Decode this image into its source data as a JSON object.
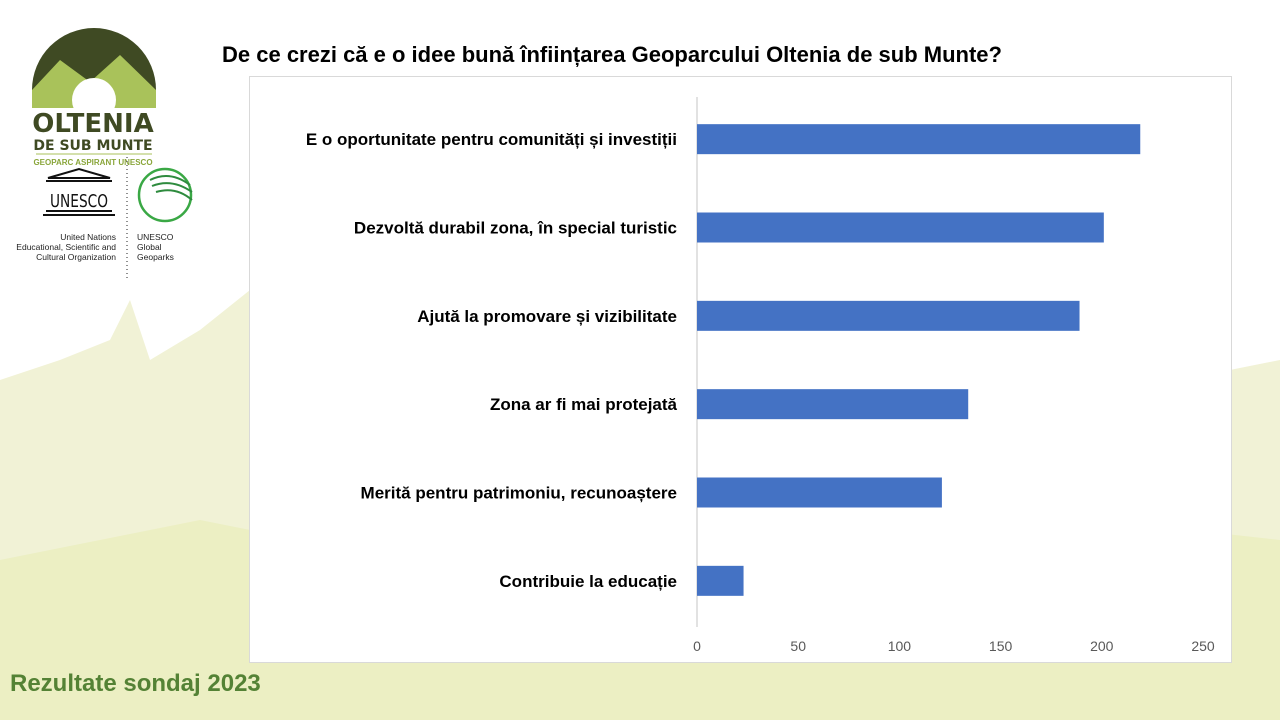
{
  "slide": {
    "title": "De ce crezi că e o idee bună înființarea Geoparcului Oltenia de sub Munte?",
    "footer": "Rezultate sondaj 2023"
  },
  "logo": {
    "name_line1": "OLTENIA",
    "name_line2": "DE SUB MUNTE",
    "subtitle": "GEOPARC ASPIRANT UNESCO",
    "unesco_word": "UNESCO",
    "unesco_caption": [
      "United Nations",
      "Educational, Scientific and",
      "Cultural Organization"
    ],
    "geoparks_caption": [
      "UNESCO",
      "Global",
      "Geoparks"
    ]
  },
  "colors": {
    "bar": "#4472c4",
    "footer": "#548235",
    "logo_dark": "#3f4a23",
    "logo_light": "#a9c25a"
  },
  "chart_data": {
    "type": "bar",
    "orientation": "horizontal",
    "title": "De ce crezi că e o idee bună înființarea Geoparcului Oltenia de sub Munte?",
    "categories": [
      "E o oportunitate pentru comunități și investiții",
      "Dezvoltă durabil zona, în special turistic",
      "Ajută la promovare și vizibilitate",
      "Zona ar fi mai protejată",
      "Merită pentru patrimoniu, recunoaștere",
      "Contribuie la educație"
    ],
    "values": [
      219,
      201,
      189,
      134,
      121,
      23
    ],
    "xlim": [
      0,
      250
    ],
    "xticks": [
      "0",
      "50",
      "100",
      "150",
      "200",
      "250"
    ],
    "xlabel": "",
    "ylabel": "",
    "grid": false,
    "legend": "none"
  }
}
